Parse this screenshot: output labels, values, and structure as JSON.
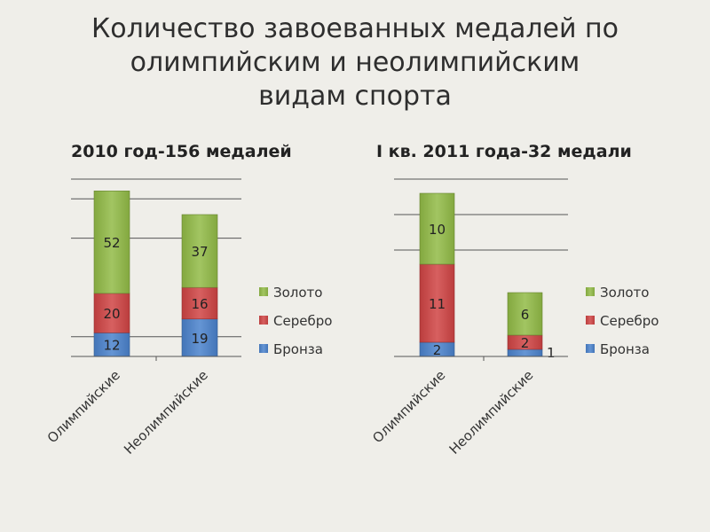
{
  "title_lines": [
    "Количество завоеванных медалей по",
    "олимпийским и неолимпийским",
    "видам спорта"
  ],
  "chart_data": [
    {
      "type": "bar",
      "stacked": true,
      "title": "2010 год-156 медалей",
      "categories": [
        "Олимпийские",
        "Неолимпийские"
      ],
      "series": [
        {
          "name": "Бронза",
          "values": [
            12,
            19
          ],
          "color": "#4a82cc"
        },
        {
          "name": "Серебро",
          "values": [
            20,
            16
          ],
          "color": "#d04444"
        },
        {
          "name": "Золото",
          "values": [
            52,
            37
          ],
          "color": "#92bb46"
        }
      ],
      "ylim": [
        0,
        90
      ],
      "gridlines": [
        10,
        60,
        80,
        90
      ],
      "legend": "right"
    },
    {
      "type": "bar",
      "stacked": true,
      "title": "I кв. 2011 года-32 медали",
      "categories": [
        "Олимпийские",
        "Неолимпийские"
      ],
      "series": [
        {
          "name": "Бронза",
          "values": [
            2,
            1
          ],
          "color": "#4a82cc"
        },
        {
          "name": "Серебро",
          "values": [
            11,
            2
          ],
          "color": "#d04444"
        },
        {
          "name": "Золото",
          "values": [
            10,
            6
          ],
          "color": "#92bb46"
        }
      ],
      "ylim": [
        0,
        25
      ],
      "gridlines": [
        15,
        20,
        25
      ],
      "legend": "right"
    }
  ]
}
